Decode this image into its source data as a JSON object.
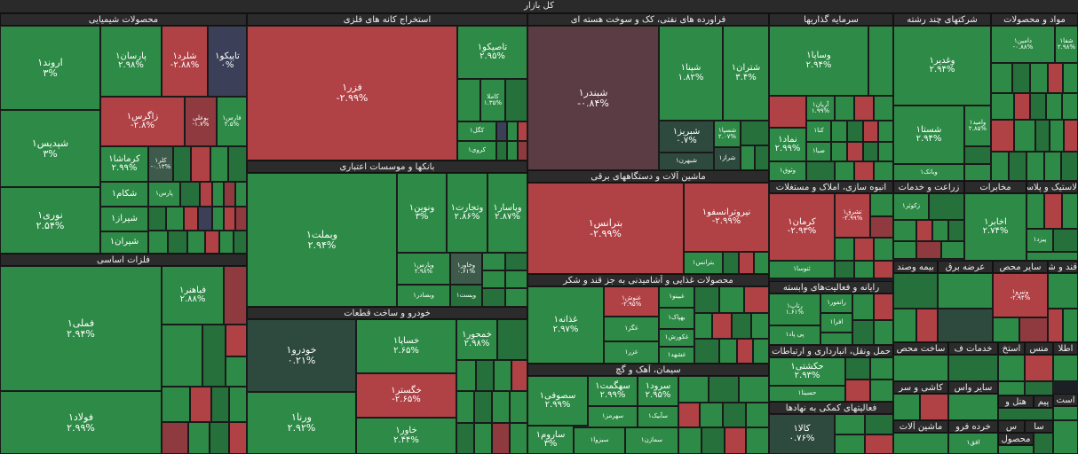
{
  "title": "کل بازار",
  "colors": {
    "up": "#2e8b47",
    "down": "#b04145",
    "flat": "#3d5a4b"
  },
  "sectors": {
    "chem": "محصولات شیمیایی",
    "metal_mining": "استخراج کانه های فلزی",
    "oil": "فراورده های نفتی، کک و سوخت هسته ای",
    "invest": "سرمایه گذاریها",
    "multi": "شرکتهای چند رشته",
    "materials": "مواد و محصولات",
    "basic_metals": "فلزات اساسی",
    "banks": "بانکها و موسسات اعتباری",
    "machinery": "ماشین آلات و دستگاههای برقی",
    "real_estate": "انبوه سازی، املاک و مستغلات",
    "agri": "زراعت و خدمات",
    "telecom": "مخابرات",
    "rubber": "لاستیک و پلاستیک",
    "auto": "خودرو و ساخت قطعات",
    "food": "محصولات غذایی و آشامیدنی به جز قند و شکر",
    "computer": "رایانه و فعالیت‌های وابسته",
    "sugar": "قند و شکر",
    "misc_row": [
      "بیمه وصند",
      "عرضه برق",
      "سایر محص"
    ],
    "cement": "سیمان، آهک و گچ",
    "transport_row": [
      "حمل ونقل، انبارداری و ارتباطات",
      "ساخت محص",
      "خدمات ف",
      "استخ",
      "منس",
      "اطلا"
    ],
    "financial": "فعالیتهای کمکی به نهادها",
    "row2": [
      "کاشی و سر",
      "سایر واس",
      "پیم",
      "است"
    ],
    "row3": [
      "ماشین آلات",
      "خرده فرو",
      "س",
      "سا",
      "محصول",
      "هتل و"
    ]
  },
  "tiles": {
    "arvand": {
      "n": "اروند۱",
      "p": "۳%"
    },
    "parsan": {
      "n": "پارسان۱",
      "p": "۲.۹۸%"
    },
    "shelard": {
      "n": "شلرد۱",
      "p": "-۲.۸۸%"
    },
    "tapico": {
      "n": "تاپیکو۱",
      "p": "۰%"
    },
    "shepdis": {
      "n": "شپدیس۱",
      "p": "۳%"
    },
    "zagros": {
      "n": "زاگرس۱",
      "p": "-۲.۸%"
    },
    "bouali": {
      "n": "بوعلی",
      "p": "-۱.۷%"
    },
    "farse": {
      "n": "فارس۱",
      "p": "۲.۵%"
    },
    "kermasha": {
      "n": "کرماشا۱",
      "p": "۲.۹۹%"
    },
    "kala": {
      "n": "کلر۱",
      "p": "-۰.۱۳%"
    },
    "noori": {
      "n": "نوری۱",
      "p": "۲.۵۴%"
    },
    "shekam": {
      "n": "شکام۱"
    },
    "shiraz": {
      "n": "شیراز۱"
    },
    "shiran": {
      "n": "شیران۱"
    },
    "pars": {
      "n": "پارس۱"
    },
    "fameli": {
      "n": "فملی۱",
      "p": "۲.۹۴%"
    },
    "fahaher": {
      "n": "فباهنر۱",
      "p": "۲.۸۸%"
    },
    "foolad": {
      "n": "فولاد۱",
      "p": "۲.۹۹%"
    },
    "fezar": {
      "n": "فزر۱",
      "p": "-۲.۹۹%"
    },
    "tapeco": {
      "n": "تاصیکو۱",
      "p": "۲.۹۵%"
    },
    "kamala": {
      "n": "کاملا",
      "p": "۱.۳۵%"
    },
    "kegol": {
      "n": "کگل۱"
    },
    "karooy": {
      "n": "کروی۱"
    },
    "vbamellat": {
      "n": "وبملت۱",
      "p": "۲.۹۴%"
    },
    "vnovin": {
      "n": "ونوین۱",
      "p": "۳%"
    },
    "vtejarat": {
      "n": "وتجارت۱",
      "p": "۲.۸۶%"
    },
    "vpasar": {
      "n": "وپاسار۱",
      "p": "۲.۸۷%"
    },
    "vpars": {
      "n": "وپارس۱",
      "p": "۲.۹۸%"
    },
    "vkhavar": {
      "n": "وخاور۱",
      "p": "۰.۶۱%"
    },
    "vsaderat": {
      "n": "وصادر۱"
    },
    "vpost": {
      "n": "وپست۱"
    },
    "vbsader": {
      "n": "وبصادر۱"
    },
    "shebandar": {
      "n": "شبندر۱",
      "p": "-۰.۸۴%"
    },
    "shepna": {
      "n": "شپنا۱",
      "p": "۱.۸۲%"
    },
    "shatran": {
      "n": "شتران۱",
      "p": "۳.۴%"
    },
    "shebriz": {
      "n": "شبریز۱",
      "p": "۰.۷%"
    },
    "shesina": {
      "n": "شسپا۱",
      "p": "۲.۰۷%"
    },
    "shebahran": {
      "n": "شبهرن۱"
    },
    "sheraz": {
      "n": "شراز۱"
    },
    "vsapa": {
      "n": "وساپا۱",
      "p": "۲.۹۴%"
    },
    "zagh": {
      "n": "آریان۱",
      "p": "۱.۹۹%"
    },
    "kana": {
      "n": "کنا۱"
    },
    "sapa": {
      "n": "صبا۱"
    },
    "namad": {
      "n": "نماد۱",
      "p": "۲.۹۹%"
    },
    "vtooq": {
      "n": "وثوق۱"
    },
    "vghadir": {
      "n": "وغدیر۱",
      "p": "۲.۹۴%"
    },
    "shasta": {
      "n": "شستا۱",
      "p": "۲.۹۴%"
    },
    "vamid": {
      "n": "وامید۱",
      "p": "۲.۸۵%"
    },
    "vbank": {
      "n": "وبانک۱"
    },
    "damin": {
      "n": "دامین۱",
      "p": "-۰.۸۸%"
    },
    "shefa": {
      "n": "شفا۱",
      "p": "۲.۹۸%"
    },
    "betranse": {
      "n": "بترانس۱",
      "p": "-۲.۹۹%"
    },
    "niroo": {
      "n": "نیروترانسفو۱",
      "p": "-۲.۹۹%"
    },
    "betrans": {
      "n": "بترانس۱"
    },
    "kerman": {
      "n": "کرمان۱",
      "p": "-۲.۹۳%"
    },
    "tashrough": {
      "n": "تشرق۱",
      "p": "-۲.۹۹%"
    },
    "tosa": {
      "n": "ثتوسا۱"
    },
    "zakosar": {
      "n": "زکوثر۱"
    },
    "ekhaber": {
      "n": "اخابر۱",
      "p": "۲.۷۴%"
    },
    "peyd": {
      "n": "پیزد۱"
    },
    "khodro": {
      "n": "خودرو۱",
      "p": "۰.۲۱%"
    },
    "khsapa": {
      "n": "خساپا۱",
      "p": "۲.۶۵%"
    },
    "khmehvar": {
      "n": "خمحور۱",
      "p": "۲.۹۸%"
    },
    "khgostar": {
      "n": "خگستر۱",
      "p": "-۲.۶۵%"
    },
    "vorna": {
      "n": "ورنا۱",
      "p": "۲.۹۲%"
    },
    "khavar": {
      "n": "خاور۱",
      "p": "۲.۴۴%"
    },
    "ghazal": {
      "n": "غذانه۱",
      "p": "۲.۹۷%"
    },
    "ghnoosh": {
      "n": "غنوش۱",
      "p": "-۲.۹۵%"
    },
    "gheinoo": {
      "n": "غبینو۱"
    },
    "bahak": {
      "n": "بهپاک۱"
    },
    "ghgaz": {
      "n": "غگز۱"
    },
    "ghkoorosh": {
      "n": "غکورش۱"
    },
    "ghzar": {
      "n": "غزر۱"
    },
    "ghshir": {
      "n": "غشهد۱"
    },
    "rotap": {
      "n": "رتاپ۱",
      "p": "۱.۶۱%"
    },
    "ranfour": {
      "n": "رانفور۱"
    },
    "afra": {
      "n": "افرا۱"
    },
    "peypad": {
      "n": "پی پاد۱"
    },
    "vnikro": {
      "n": "ونیرو۱",
      "p": "-۲.۹۴%"
    },
    "hakshti": {
      "n": "حکشتی۱",
      "p": "۲.۹۳%"
    },
    "hasina": {
      "n": "حسینا۱"
    },
    "sesofi": {
      "n": "سصوفی۱",
      "p": "۲.۹۹%"
    },
    "sehgmat": {
      "n": "سهگمت۱",
      "p": "۲.۹۹%"
    },
    "serod": {
      "n": "سرود۱",
      "p": "۲.۹۵%"
    },
    "sehmaz": {
      "n": "سهرمز۱"
    },
    "sapik": {
      "n": "سآبیک۱"
    },
    "saroom": {
      "n": "ساروم۱",
      "p": "۳%"
    },
    "sebzva": {
      "n": "سبزوا۱"
    },
    "semazan": {
      "n": "سمازن۱"
    },
    "kala2": {
      "n": "کالا۱",
      "p": "۰.۷۶%"
    },
    "afgh": {
      "n": "افق۱"
    }
  }
}
